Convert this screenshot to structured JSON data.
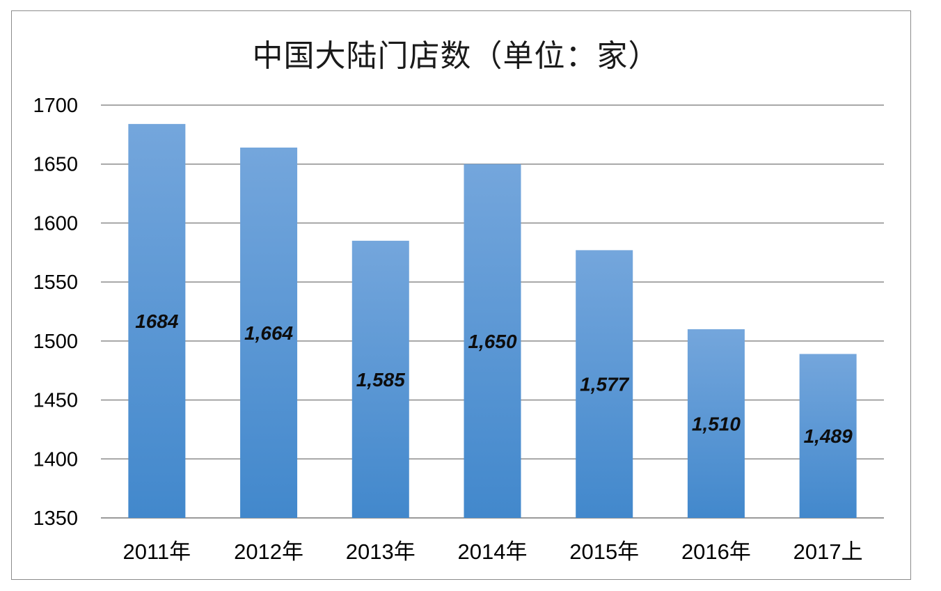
{
  "chart_data": {
    "type": "bar",
    "title": "中国大陆门店数（单位：家）",
    "xlabel": "",
    "ylabel": "",
    "categories": [
      "2011年",
      "2012年",
      "2013年",
      "2014年",
      "2015年",
      "2016年",
      "2017上"
    ],
    "values": [
      1684,
      1664,
      1585,
      1650,
      1577,
      1510,
      1489
    ],
    "data_labels": [
      "1684",
      "1,664",
      "1,585",
      "1,650",
      "1,577",
      "1,510",
      "1,489"
    ],
    "ylim": [
      1350,
      1700
    ],
    "yticks": [
      1350,
      1400,
      1450,
      1500,
      1550,
      1600,
      1650,
      1700
    ],
    "grid": true,
    "legend": "none",
    "bar_color_top": "#74a6dc",
    "bar_color_bottom": "#4288cc"
  }
}
